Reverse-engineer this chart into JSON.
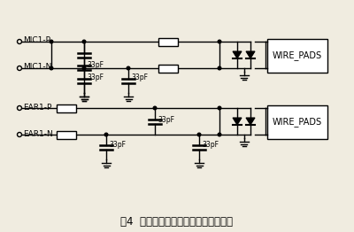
{
  "title": "图4  主音频输入输出通道的电路设计图",
  "title_fontsize": 8.5,
  "bg_color": "#f0ece0",
  "line_color": "#000000",
  "labels": {
    "MIC1_P": "MIC1-P",
    "MIC1_N": "MIC1-N",
    "EAR1_P": "EAR1-P",
    "EAR1_N": "EAR1-N",
    "WIRE_PADS1": "WIRE_PADS",
    "WIRE_PADS2": "WIRE_PADS"
  },
  "cap_label": "33pF"
}
